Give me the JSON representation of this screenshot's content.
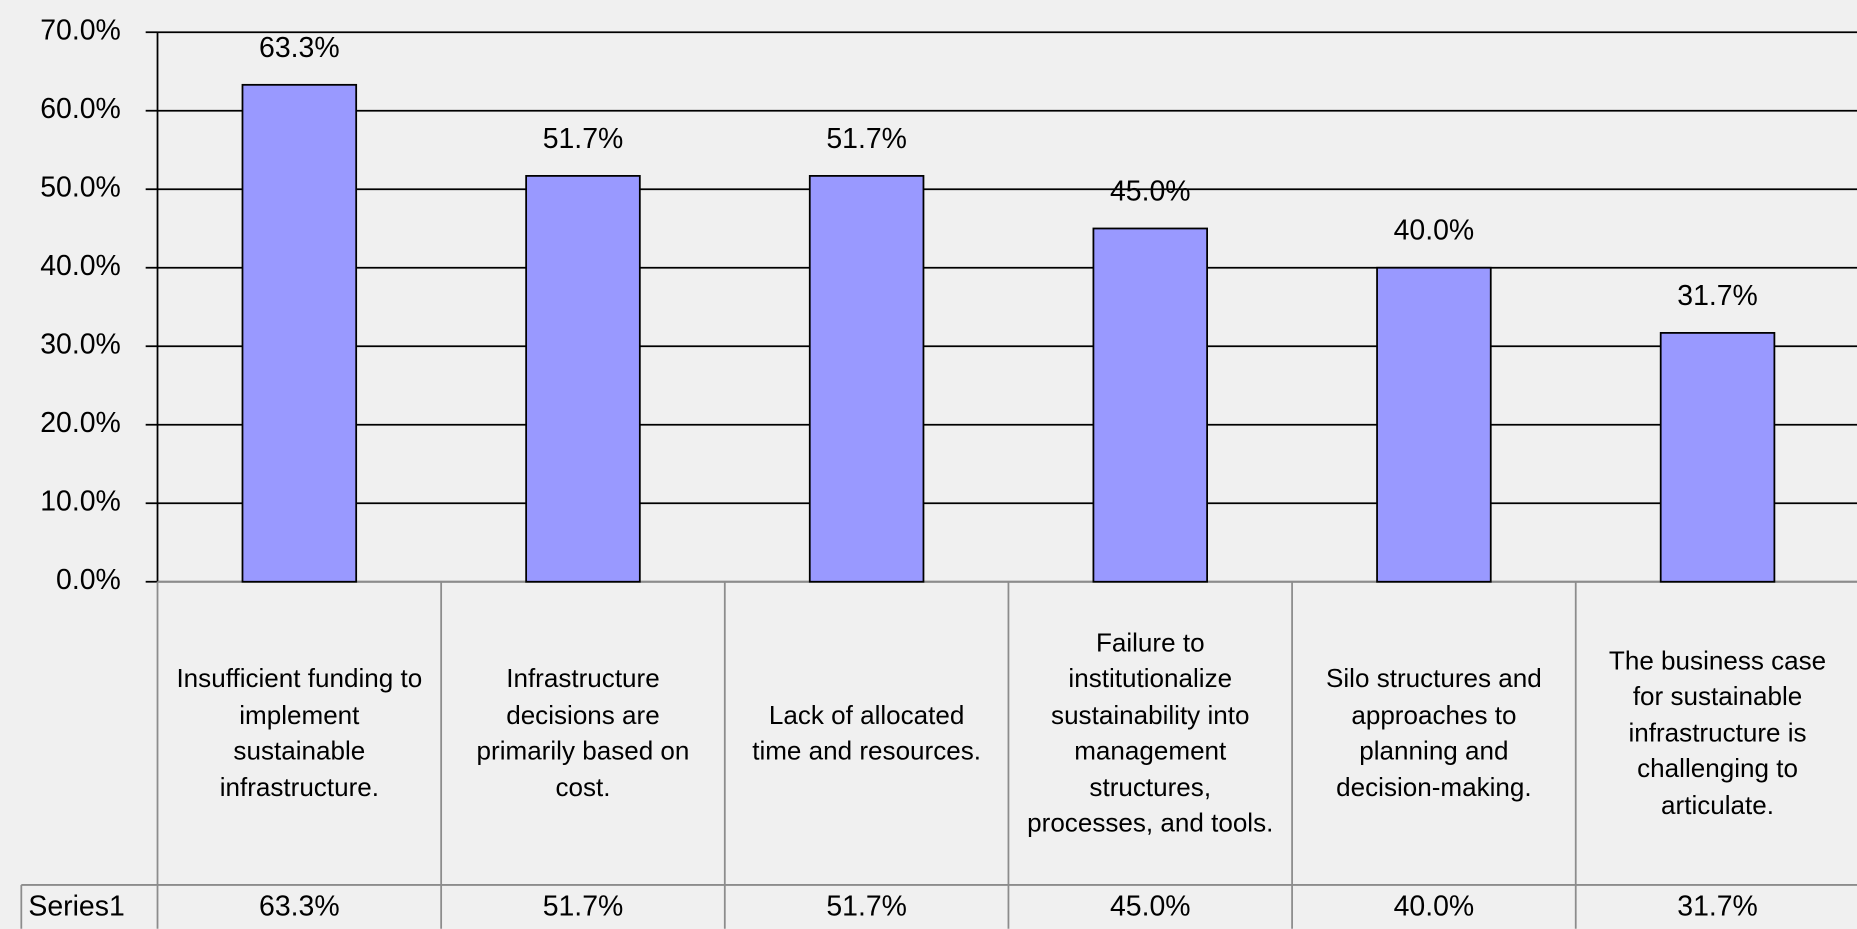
{
  "chart_data": {
    "type": "bar",
    "categories": [
      "Insufficient funding to implement sustainable infrastructure.",
      "Infrastructure decisions are primarily based on cost.",
      "Lack of allocated time and resources.",
      "Failure to institutionalize sustainability into management structures, processes, and tools.",
      "Silo structures and approaches to planning and decision-making.",
      "The business case for sustainable infrastructure is challenging to articulate."
    ],
    "series": [
      {
        "name": "Series1",
        "color": "#9999ff",
        "values": [
          63.3,
          51.7,
          51.7,
          45.0,
          40.0,
          31.7
        ],
        "value_labels": [
          "63.3%",
          "51.7%",
          "51.7%",
          "45.0%",
          "40.0%",
          "31.7%"
        ]
      }
    ],
    "ylim": [
      0,
      70
    ],
    "yticks": [
      {
        "value": 0,
        "label": "0.0%"
      },
      {
        "value": 10,
        "label": "10.0%"
      },
      {
        "value": 20,
        "label": "20.0%"
      },
      {
        "value": 30,
        "label": "30.0%"
      },
      {
        "value": 40,
        "label": "40.0%"
      },
      {
        "value": 50,
        "label": "50.0%"
      },
      {
        "value": 60,
        "label": "60.0%"
      },
      {
        "value": 70,
        "label": "70.0%"
      }
    ],
    "grid": true
  }
}
